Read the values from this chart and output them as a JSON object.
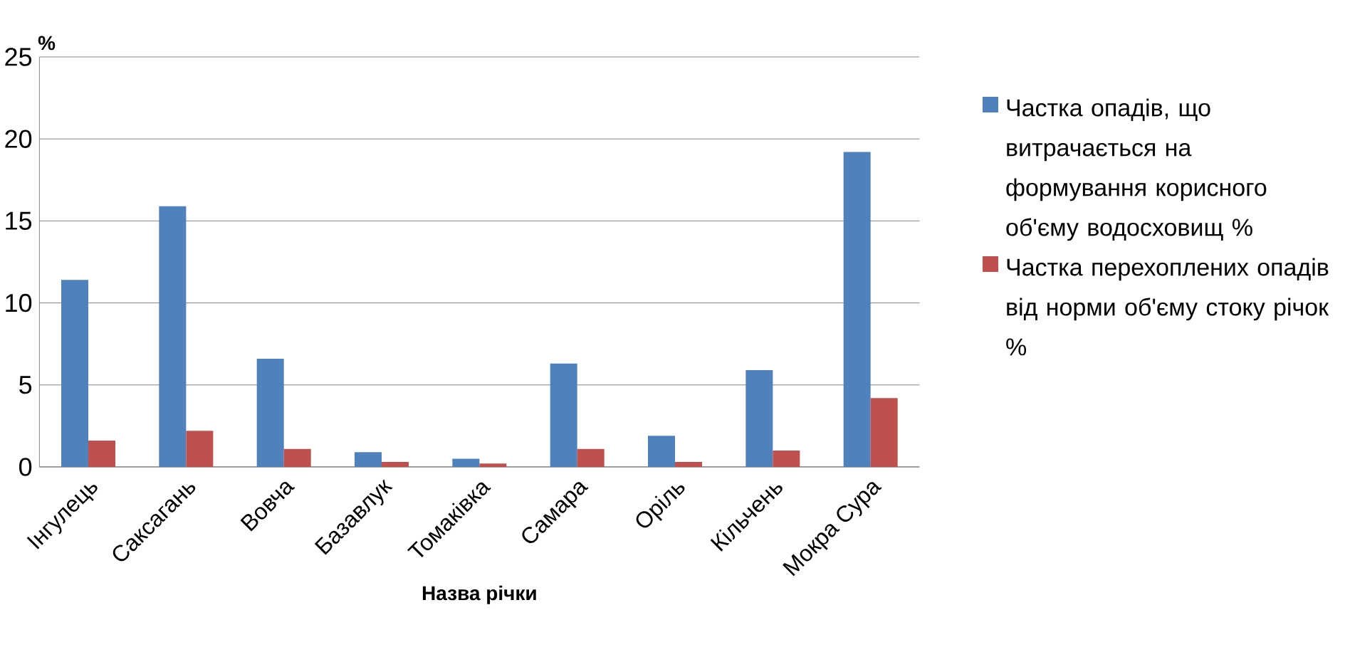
{
  "chart_data": {
    "type": "bar",
    "xlabel": "Назва річки",
    "ylabel": "%",
    "categories": [
      "Інгулець",
      "Саксагань",
      "Вовча",
      "Базавлук",
      "Томаківка",
      "Самара",
      "Оріль",
      "Кільчень",
      "Мокра Сура"
    ],
    "series": [
      {
        "name": "Частка опадів, що витрачається на формування корисного об'єму водосховищ %",
        "color": "#4f81bd",
        "values": [
          11.4,
          15.9,
          6.6,
          0.9,
          0.5,
          6.3,
          1.9,
          5.9,
          19.2
        ]
      },
      {
        "name": "Частка перехоплених опадів від норми об'єму стоку річок %",
        "color": "#c0504d",
        "values": [
          1.6,
          2.2,
          1.1,
          0.3,
          0.2,
          1.1,
          0.3,
          1.0,
          4.2
        ]
      }
    ],
    "ylim": [
      0,
      25
    ],
    "yticks": [
      0,
      5,
      10,
      15,
      20,
      25
    ],
    "grid": "y",
    "legend": "right"
  }
}
